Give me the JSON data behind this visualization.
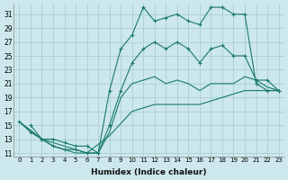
{
  "xlabel": "Humidex (Indice chaleur)",
  "bg_color": "#cce8ec",
  "grid_color": "#aacdd4",
  "line_color": "#1a7a6a",
  "xlim": [
    -0.5,
    23.5
  ],
  "ylim": [
    10.5,
    32.5
  ],
  "xticks": [
    0,
    1,
    2,
    3,
    4,
    5,
    6,
    7,
    8,
    9,
    10,
    11,
    12,
    13,
    14,
    15,
    16,
    17,
    18,
    19,
    20,
    21,
    22,
    23
  ],
  "yticks": [
    11,
    13,
    15,
    17,
    19,
    21,
    23,
    25,
    27,
    29,
    31
  ],
  "line1_x": [
    0,
    1,
    2,
    3,
    4,
    5,
    6,
    7,
    8,
    9,
    10,
    11,
    12,
    13,
    14,
    15,
    16,
    17,
    18,
    19,
    20,
    21,
    22,
    23
  ],
  "line1_y": [
    15.5,
    14,
    13,
    12,
    11.5,
    11.5,
    11,
    11,
    20,
    26,
    28,
    32,
    30,
    30.5,
    31,
    30,
    29.5,
    32,
    32,
    31,
    31,
    21,
    20,
    20
  ],
  "line2_x": [
    1,
    2,
    3,
    4,
    5,
    6,
    7,
    8,
    9,
    10,
    11,
    12,
    13,
    14,
    15,
    16,
    17,
    18,
    19,
    20,
    21,
    22,
    23
  ],
  "line2_y": [
    15,
    13,
    13,
    12.5,
    12,
    12,
    11,
    15,
    20,
    24,
    26,
    27,
    26,
    27,
    26,
    24,
    26,
    26.5,
    25,
    25,
    21.5,
    21.5,
    20
  ],
  "line3_x": [
    0,
    2,
    3,
    4,
    5,
    6,
    7,
    8,
    9,
    10,
    11,
    12,
    13,
    14,
    15,
    16,
    17,
    18,
    19,
    20,
    21,
    22,
    23
  ],
  "line3_y": [
    15.5,
    13,
    12,
    11.5,
    11,
    11,
    11,
    14,
    19,
    21,
    21.5,
    22,
    21,
    21.5,
    21,
    20,
    21,
    21,
    21,
    22,
    21.5,
    20.5,
    20
  ],
  "line4_x": [
    0,
    2,
    4,
    6,
    8,
    10,
    12,
    14,
    16,
    18,
    20,
    22,
    23
  ],
  "line4_y": [
    15.5,
    13,
    12,
    11,
    13.5,
    17,
    18,
    18,
    18,
    19,
    20,
    20,
    20
  ]
}
